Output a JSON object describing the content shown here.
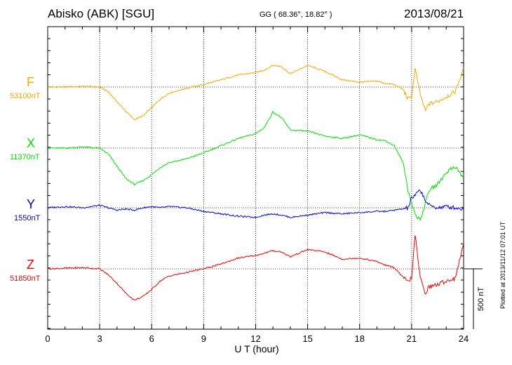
{
  "header": {
    "station": "Abisko (ABK)  [SGU]",
    "coords": "GG ( 68.36°,  18.82° )",
    "date": "2013/08/21"
  },
  "channels": [
    {
      "letter": "F",
      "baseline": "53100nT",
      "color": "#f0a800"
    },
    {
      "letter": "X",
      "baseline": "11370nT",
      "color": "#00e000"
    },
    {
      "letter": "Y",
      "baseline": "1550nT",
      "color": "#0000e0"
    },
    {
      "letter": "Z",
      "baseline": "51850nT",
      "color": "#f00000"
    }
  ],
  "scale_bar": {
    "label": "500 nT"
  },
  "footer": {
    "plotted": "Plotted at 2013/11/12 07:01  UT"
  },
  "chart_data": {
    "type": "line",
    "title": "Abisko (ABK)  [SGU]",
    "xlabel": "U T (hour)",
    "ylabel": "",
    "xlim": [
      0,
      24
    ],
    "x_ticks": [
      0,
      3,
      6,
      9,
      12,
      15,
      18,
      21,
      24
    ],
    "grid": true,
    "scale_bar_nT": 500,
    "x": [
      0,
      1,
      2,
      3,
      3.5,
      4,
      4.5,
      5,
      5.5,
      6,
      6.5,
      7,
      8,
      9,
      10,
      11,
      12,
      12.5,
      13,
      13.5,
      14,
      15,
      16,
      17,
      18,
      19,
      19.5,
      20,
      20.5,
      20.8,
      21,
      21.2,
      21.5,
      21.8,
      22,
      22.5,
      23,
      23.5,
      24
    ],
    "series": [
      {
        "name": "F",
        "values": [
          0,
          0,
          5,
          0,
          -40,
          -120,
          -200,
          -270,
          -240,
          -170,
          -100,
          -50,
          -10,
          20,
          60,
          100,
          120,
          140,
          180,
          170,
          110,
          180,
          130,
          60,
          40,
          50,
          30,
          20,
          -20,
          -100,
          -80,
          150,
          -60,
          -200,
          -140,
          -120,
          -80,
          -40,
          150
        ]
      },
      {
        "name": "X",
        "values": [
          0,
          0,
          10,
          0,
          -50,
          -150,
          -250,
          -300,
          -270,
          -220,
          -160,
          -120,
          -90,
          -40,
          20,
          80,
          120,
          170,
          300,
          250,
          150,
          140,
          100,
          80,
          110,
          70,
          60,
          20,
          -120,
          -350,
          -450,
          -550,
          -600,
          -450,
          -350,
          -300,
          -200,
          -150,
          -250
        ]
      },
      {
        "name": "Y",
        "values": [
          0,
          10,
          0,
          20,
          0,
          -20,
          -10,
          -20,
          0,
          10,
          0,
          10,
          0,
          -30,
          -50,
          -70,
          -80,
          -60,
          -50,
          -60,
          -80,
          -60,
          -40,
          -50,
          -40,
          -30,
          -30,
          -20,
          -10,
          0,
          80,
          100,
          150,
          60,
          20,
          0,
          10,
          0,
          -10
        ]
      },
      {
        "name": "Z",
        "values": [
          0,
          5,
          10,
          0,
          -50,
          -120,
          -200,
          -260,
          -230,
          -170,
          -100,
          -60,
          -30,
          0,
          40,
          90,
          110,
          130,
          150,
          140,
          100,
          160,
          140,
          80,
          90,
          60,
          30,
          10,
          -70,
          -110,
          -70,
          280,
          -80,
          -200,
          -150,
          -130,
          -100,
          -80,
          200
        ]
      }
    ]
  }
}
